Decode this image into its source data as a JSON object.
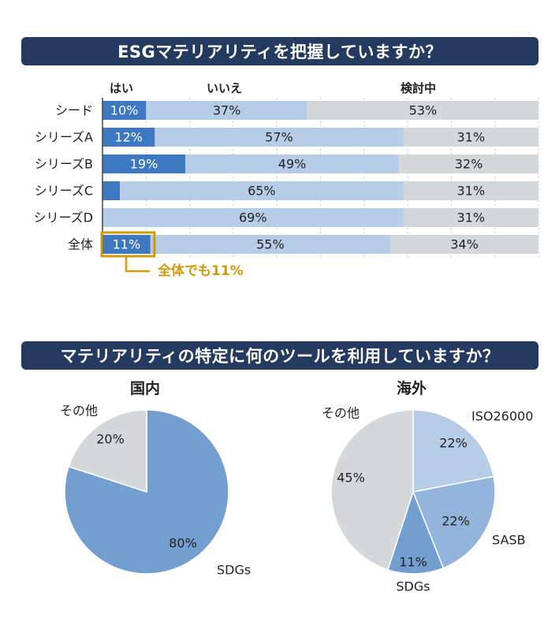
{
  "chart_data": [
    {
      "type": "bar",
      "stacked": true,
      "orientation": "horizontal",
      "title": "ESGマテリアリティを把握していますか？",
      "categories": [
        "シード",
        "シリーズA",
        "シリーズB",
        "シリーズC",
        "シリーズD",
        "全体"
      ],
      "series": [
        {
          "name": "はい",
          "values": [
            10,
            12,
            19,
            4,
            0,
            11
          ],
          "color": "#3d78c0"
        },
        {
          "name": "いいえ",
          "values": [
            37,
            57,
            49,
            65,
            69,
            55
          ],
          "color": "#b7cde7"
        },
        {
          "name": "検討中",
          "values": [
            53,
            31,
            32,
            31,
            31,
            34
          ],
          "color": "#d5d8db"
        }
      ],
      "xlim": [
        0,
        100
      ],
      "grid": true,
      "annotation": "全体でも11%",
      "highlight_color": "#d19a0a"
    },
    {
      "type": "pie",
      "title": "マテリアリティの特定に何のツールを利用していますか？",
      "panels": [
        {
          "title": "国内",
          "slices": [
            {
              "label": "SDGs",
              "value": 80,
              "color": "#739fd0"
            },
            {
              "label": "その他",
              "value": 20,
              "color": "#d5d8db"
            }
          ]
        },
        {
          "title": "海外",
          "slices": [
            {
              "label": "ISO26000",
              "value": 22,
              "color": "#b7cde7"
            },
            {
              "label": "SASB",
              "value": 22,
              "color": "#93b5dc"
            },
            {
              "label": "SDGs",
              "value": 11,
              "color": "#739fd0"
            },
            {
              "label": "その他",
              "value": 45,
              "color": "#d5d8db"
            }
          ]
        }
      ]
    }
  ]
}
